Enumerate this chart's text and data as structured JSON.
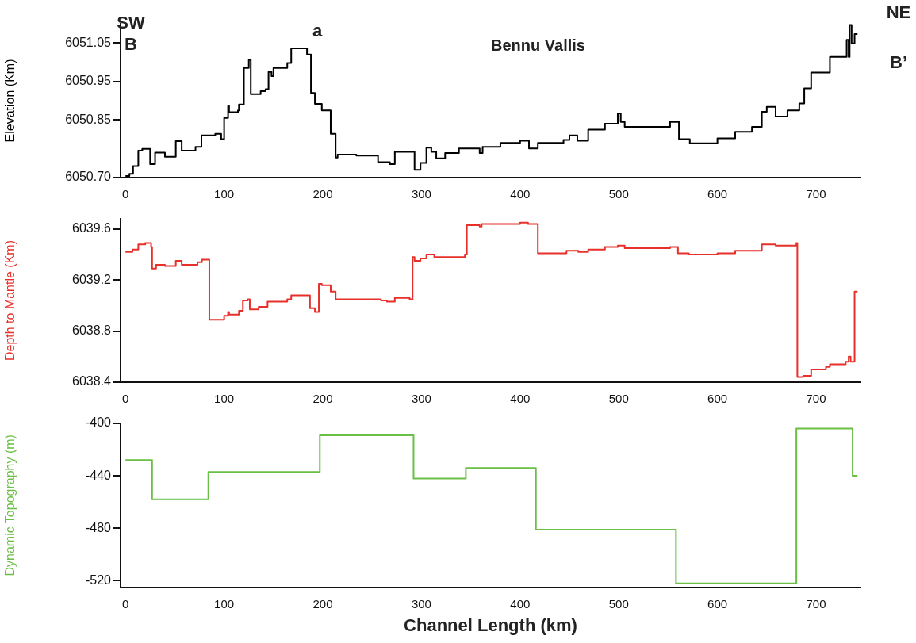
{
  "chart_data": [
    {
      "type": "step",
      "title": "Bennu Vallis",
      "ylabel": "Elevation (Km)",
      "xlim": [
        -5,
        745
      ],
      "xticks": [
        0,
        100,
        200,
        300,
        400,
        500,
        600,
        700
      ],
      "ylim": [
        6050.7,
        6051.1
      ],
      "yticks": [
        {
          "value": 6050.7,
          "label": "6050.70"
        },
        6050.85,
        6050.95,
        6051.05
      ],
      "grid": false,
      "legend": false,
      "x": [
        0,
        4,
        7.7,
        13,
        17,
        25,
        30,
        40,
        51,
        57,
        71,
        77,
        91,
        97,
        100,
        104,
        105,
        114,
        115,
        120,
        125,
        127,
        137,
        142,
        145,
        148,
        150,
        164,
        168,
        184,
        188,
        192,
        199,
        208,
        213,
        215,
        234,
        250,
        256,
        268,
        273,
        293,
        299,
        305,
        310,
        315,
        324,
        338,
        359,
        362,
        380,
        400,
        409,
        418,
        444,
        450,
        458,
        469,
        486,
        499,
        502,
        506,
        552,
        561,
        572,
        600,
        618,
        635,
        645,
        650,
        659,
        671,
        683,
        688,
        695,
        714,
        731,
        733,
        734,
        736,
        739,
        742
      ],
      "series": [
        {
          "color": "#000000",
          "values": [
            6050.704,
            6050.71,
            6050.73,
            6050.77,
            6050.775,
            6050.735,
            6050.765,
            6050.754,
            6050.795,
            6050.77,
            6050.78,
            6050.81,
            6050.814,
            6050.8,
            6050.855,
            6050.886,
            6050.87,
            6050.875,
            6050.89,
            6050.985,
            6051.006,
            6050.917,
            6050.925,
            6050.93,
            6050.975,
            6050.964,
            6050.985,
            6050.998,
            6051.036,
            6051.02,
            6050.92,
            6050.892,
            6050.875,
            6050.814,
            6050.752,
            6050.76,
            6050.757,
            6050.757,
            6050.74,
            6050.735,
            6050.767,
            6050.72,
            6050.738,
            6050.778,
            6050.767,
            6050.75,
            6050.764,
            6050.776,
            6050.764,
            6050.78,
            6050.79,
            6050.796,
            6050.776,
            6050.79,
            6050.798,
            6050.81,
            6050.796,
            6050.825,
            6050.84,
            6050.867,
            6050.845,
            6050.832,
            6050.845,
            6050.8,
            6050.789,
            6050.802,
            6050.819,
            6050.832,
            6050.871,
            6050.884,
            6050.859,
            6050.875,
            6050.893,
            6050.932,
            6050.973,
            6051.014,
            6051.058,
            6051.014,
            6051.097,
            6051.049,
            6051.073,
            6051.073
          ]
        }
      ],
      "annotations": [
        "SW",
        "B",
        "a",
        "NE",
        "B’"
      ]
    },
    {
      "type": "step",
      "ylabel": "Depth to Mantle (Km)",
      "xlim": [
        -5,
        745
      ],
      "xticks": [
        0,
        100,
        200,
        300,
        400,
        500,
        600,
        700
      ],
      "ylim": [
        6038.4,
        6039.68
      ],
      "yticks": [
        6038.4,
        6038.8,
        6039.2,
        6039.6
      ],
      "grid": false,
      "legend": false,
      "x": [
        0,
        7,
        13,
        20,
        26,
        27,
        31,
        40,
        51,
        57,
        73,
        77.5,
        85,
        100,
        104,
        105,
        115,
        119,
        124,
        126,
        135,
        144,
        150,
        164,
        168,
        187,
        192,
        196,
        199,
        208,
        213,
        259,
        265,
        273,
        288,
        291,
        293,
        299,
        305,
        313,
        344,
        346,
        359,
        361,
        400,
        408,
        418,
        447,
        459,
        469,
        483,
        486,
        499,
        506,
        552,
        560,
        571,
        600,
        618,
        645,
        659,
        680,
        681,
        687,
        695,
        710,
        714,
        730,
        733,
        735,
        739,
        742
      ],
      "series": [
        {
          "color": "#e8302a",
          "values": [
            6039.42,
            6039.44,
            6039.48,
            6039.49,
            6039.46,
            6039.29,
            6039.32,
            6039.31,
            6039.35,
            6039.32,
            6039.34,
            6039.36,
            6038.89,
            6038.92,
            6038.95,
            6038.93,
            6038.96,
            6039.04,
            6039.05,
            6038.97,
            6038.99,
            6039.03,
            6039.03,
            6039.05,
            6039.08,
            6038.98,
            6038.95,
            6039.17,
            6039.16,
            6039.11,
            6039.05,
            6039.04,
            6039.03,
            6039.06,
            6039.05,
            6039.38,
            6039.35,
            6039.37,
            6039.4,
            6039.38,
            6039.4,
            6039.63,
            6039.62,
            6039.64,
            6039.65,
            6039.64,
            6039.41,
            6039.43,
            6039.42,
            6039.44,
            6039.44,
            6039.46,
            6039.47,
            6039.45,
            6039.46,
            6039.41,
            6039.4,
            6039.41,
            6039.43,
            6039.48,
            6039.47,
            6039.49,
            6038.44,
            6038.45,
            6038.5,
            6038.52,
            6038.54,
            6038.56,
            6038.6,
            6038.56,
            6039.11,
            6039.11
          ]
        }
      ]
    },
    {
      "type": "step",
      "ylabel": "Dynamic Topography (m)",
      "xlabel": "Channel Length (km)",
      "xlim": [
        -5,
        745
      ],
      "xticks": [
        0,
        100,
        200,
        300,
        400,
        500,
        600,
        700
      ],
      "ylim": [
        -525,
        -400
      ],
      "yticks": [
        -520,
        -480,
        -440,
        -400
      ],
      "grid": false,
      "legend": false,
      "x": [
        0,
        27,
        84,
        197,
        292,
        345,
        416,
        558,
        680,
        737,
        742
      ],
      "series": [
        {
          "color": "#6abf45",
          "values": [
            -428,
            -458,
            -437,
            -409,
            -442,
            -434,
            -481,
            -522,
            -404,
            -440,
            -440
          ]
        }
      ]
    }
  ]
}
